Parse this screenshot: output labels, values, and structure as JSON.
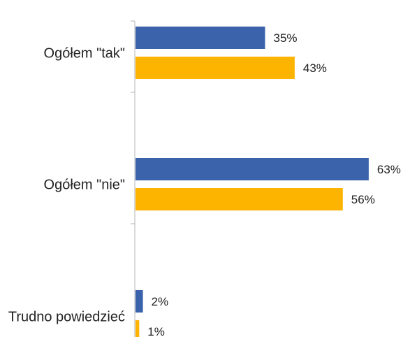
{
  "chart_data": {
    "type": "bar",
    "orientation": "horizontal",
    "categories": [
      "Ogółem \"tak\"",
      "Ogółem \"nie\"",
      "Trudno powiedzieć"
    ],
    "series": [
      {
        "values": [
          35,
          63,
          2
        ],
        "labels": [
          "35%",
          "63%",
          "2%"
        ],
        "color": "#3a63ab"
      },
      {
        "values": [
          43,
          56,
          1
        ],
        "labels": [
          "43%",
          "56%",
          "1%"
        ],
        "color": "#fdb400"
      }
    ],
    "value_unit": "%",
    "xlim": [
      0,
      65
    ],
    "axis_color": "#b5b5b5",
    "gridlines": false,
    "legend": "none"
  }
}
